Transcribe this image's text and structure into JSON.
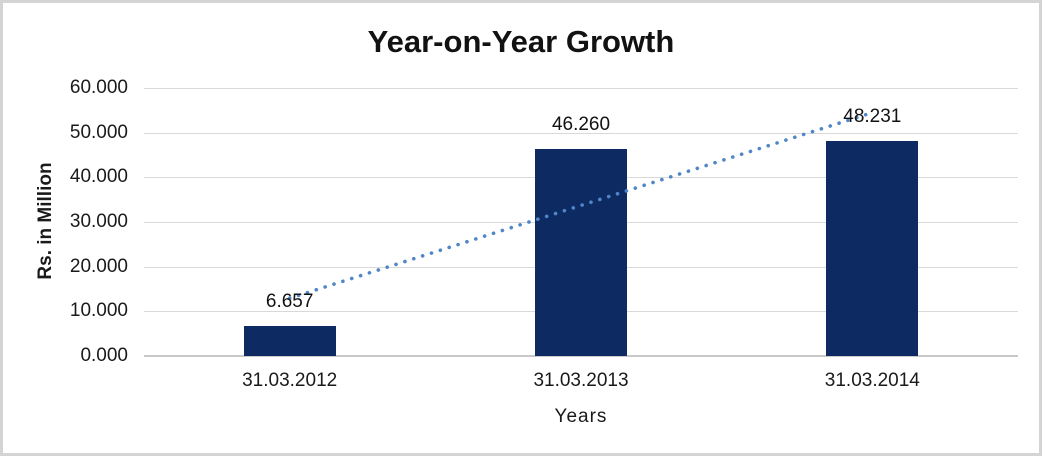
{
  "window": {
    "background_color": "#ffffff",
    "frame_border_color": "#d4d4d4"
  },
  "chart_data": {
    "type": "bar",
    "title": "Year-on-Year Growth",
    "xlabel": "Years",
    "ylabel": "Rs. in Million",
    "categories": [
      "31.03.2012",
      "31.03.2013",
      "31.03.2014"
    ],
    "values": [
      6.657,
      46.26,
      48.231
    ],
    "value_labels": [
      "6.657",
      "46.260",
      "48.231"
    ],
    "ylim": [
      0,
      60
    ],
    "ytick_values": [
      0,
      10,
      20,
      30,
      40,
      50,
      60
    ],
    "ytick_labels": [
      "0.000",
      "10.000",
      "20.000",
      "30.000",
      "40.000",
      "50.000",
      "60.000"
    ],
    "grid": true,
    "legend": "none",
    "bar_color": "#0d2a63",
    "gridline_color": "#d9d9d9",
    "axis_line_color": "#c9c9c9",
    "trendline": {
      "type": "linear",
      "style": "dotted",
      "color": "#4f86c8",
      "start_value": 12.93,
      "end_value": 54.5
    }
  }
}
